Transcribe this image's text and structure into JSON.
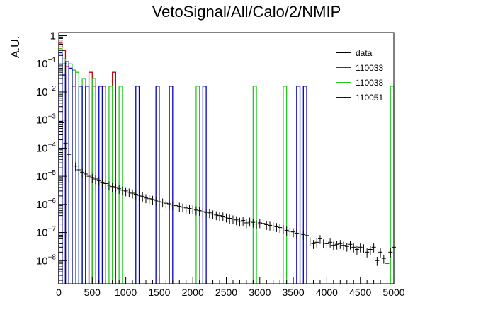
{
  "chart_data": {
    "type": "bar",
    "title": "VetoSignal/All/Calo/2/NMIP",
    "ylabel": "A.U.",
    "xlabel": "",
    "xlim": [
      0,
      5000
    ],
    "ylim": [
      1.5e-09,
      1.3
    ],
    "log_y": true,
    "grid": false,
    "legend_position": "top-right",
    "x_ticks": [
      0,
      500,
      1000,
      1500,
      2000,
      2500,
      3000,
      3500,
      4000,
      4500,
      5000
    ],
    "y_ticks": [
      "10^{-8}",
      "10^{-7}",
      "10^{-6}",
      "10^{-5}",
      "10^{-4}",
      "10^{-3}",
      "10^{-2}",
      "10^{-1}",
      "1"
    ],
    "series": [
      {
        "name": "data",
        "color": "#000000",
        "style": "points-with-errors",
        "x": [
          50,
          100,
          150,
          200,
          250,
          300,
          350,
          400,
          450,
          500,
          550,
          600,
          650,
          700,
          750,
          800,
          850,
          900,
          950,
          1000,
          1050,
          1100,
          1150,
          1200,
          1250,
          1300,
          1350,
          1400,
          1450,
          1500,
          1550,
          1600,
          1650,
          1700,
          1750,
          1800,
          1850,
          1900,
          1950,
          2000,
          2050,
          2100,
          2150,
          2200,
          2250,
          2300,
          2350,
          2400,
          2450,
          2500,
          2550,
          2600,
          2650,
          2700,
          2750,
          2800,
          2850,
          2900,
          2950,
          3000,
          3050,
          3100,
          3150,
          3200,
          3250,
          3300,
          3350,
          3400,
          3450,
          3500,
          3550,
          3600,
          3650,
          3700,
          3750,
          3800,
          3850,
          3900,
          3950,
          4000,
          4050,
          4100,
          4150,
          4200,
          4250,
          4300,
          4350,
          4400,
          4450,
          4500,
          4550,
          4600,
          4650,
          4700,
          4750,
          4800,
          4850,
          4900,
          4950,
          5000
        ],
        "y": [
          0.0008,
          0.00015,
          6e-05,
          3.5e-05,
          2.3e-05,
          1.7e-05,
          1.4e-05,
          1.2e-05,
          1e-05,
          9e-06,
          8e-06,
          7e-06,
          6.2e-06,
          5.5e-06,
          4.8e-06,
          4.3e-06,
          4e-06,
          3.6e-06,
          3.2e-06,
          3e-06,
          2.7e-06,
          2.5e-06,
          2.3e-06,
          2.1e-06,
          1.95e-06,
          1.7e-06,
          1.6e-06,
          1.5e-06,
          1.4e-06,
          1.25e-06,
          1.2e-06,
          1.1e-06,
          1.05e-06,
          9.5e-07,
          9e-07,
          8.5e-07,
          8e-07,
          7.5e-07,
          7.2e-07,
          6.8e-07,
          6.3e-07,
          6e-07,
          5.5e-07,
          5.2e-07,
          5e-07,
          4.5e-07,
          4.2e-07,
          4e-07,
          3.8e-07,
          3.5e-07,
          3.2e-07,
          3e-07,
          2.8e-07,
          2.5e-07,
          2.7e-07,
          2.2e-07,
          2.5e-07,
          2.3e-07,
          2e-07,
          2.2e-07,
          2.1e-07,
          1.9e-07,
          1.8e-07,
          1.7e-07,
          1.6e-07,
          1.5e-07,
          1.35e-07,
          1.2e-07,
          1.1e-07,
          1.05e-07,
          9.5e-08,
          9e-08,
          8.5e-08,
          7.8e-08,
          5e-08,
          4e-08,
          4.5e-08,
          6e-08,
          4.2e-08,
          4e-08,
          4.5e-08,
          3.5e-08,
          3.8e-08,
          4e-08,
          3.5e-08,
          3.2e-08,
          3.8e-08,
          3e-08,
          2.5e-08,
          3e-08,
          2.8e-08,
          2e-08,
          2.5e-08,
          3e-08,
          1e-08,
          2e-08,
          1.2e-08,
          8e-09,
          2e-08,
          3e-08
        ]
      },
      {
        "name": "110033",
        "color": "#cc0000",
        "style": "histogram",
        "bin_width": 50,
        "bins": [
          [
            0,
            0.55
          ],
          [
            50,
            0.3
          ],
          [
            100,
            0.08
          ],
          [
            200,
            0.016
          ],
          [
            450,
            0.05
          ],
          [
            500,
            0.016
          ],
          [
            650,
            0.016
          ],
          [
            800,
            0.05
          ]
        ]
      },
      {
        "name": "110038",
        "color": "#22cc22",
        "style": "histogram",
        "bin_width": 50,
        "bins": [
          [
            0,
            0.35
          ],
          [
            50,
            0.15
          ],
          [
            150,
            0.1
          ],
          [
            200,
            0.06
          ],
          [
            250,
            0.05
          ],
          [
            350,
            0.03
          ],
          [
            500,
            0.03
          ],
          [
            750,
            0.016
          ],
          [
            900,
            0.016
          ],
          [
            2050,
            0.016
          ],
          [
            2900,
            0.016
          ],
          [
            3350,
            0.016
          ],
          [
            4950,
            0.016
          ]
        ]
      },
      {
        "name": "110051",
        "color": "#0000cc",
        "style": "histogram",
        "bin_width": 50,
        "bins": [
          [
            0,
            0.25
          ],
          [
            50,
            0.04
          ],
          [
            100,
            0.12
          ],
          [
            150,
            0.07
          ],
          [
            300,
            0.016
          ],
          [
            400,
            0.016
          ],
          [
            600,
            0.016
          ],
          [
            1150,
            0.016
          ],
          [
            1450,
            0.016
          ],
          [
            1650,
            0.016
          ],
          [
            2150,
            0.016
          ],
          [
            3550,
            0.016
          ],
          [
            3650,
            0.016
          ]
        ]
      }
    ]
  }
}
